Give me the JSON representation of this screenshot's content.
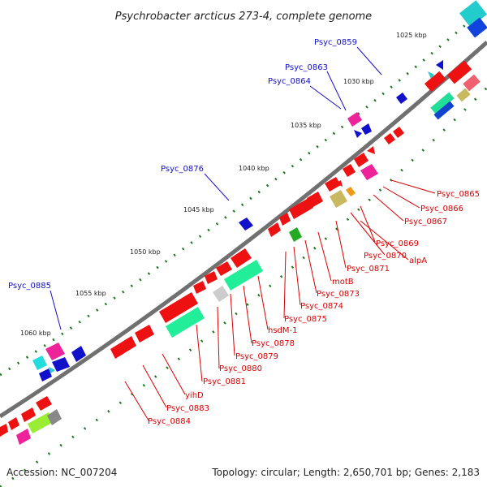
{
  "title": "Psychrobacter arcticus 273-4, complete genome",
  "footer": {
    "accession": "Accession: NC_007204",
    "summary": "Topology: circular; Length: 2,650,701 bp; Genes: 2,183"
  },
  "colors": {
    "forward_label": "#1111cc",
    "reverse_label": "#dd0000",
    "backbone": "#707070",
    "tick": "#1a7a1a"
  },
  "kbp_labels": [
    "1025 kbp",
    "1030 kbp",
    "1035 kbp",
    "1040 kbp",
    "1045 kbp",
    "1050 kbp",
    "1055 kbp",
    "1060 kbp"
  ],
  "genes_above": [
    "Psyc_0859",
    "Psyc_0863",
    "Psyc_0864",
    "Psyc_0876",
    "Psyc_0885"
  ],
  "genes_below": [
    "Psyc_0865",
    "Psyc_0866",
    "Psyc_0867",
    "Psyc_0869",
    "Psyc_0870",
    "alpA",
    "Psyc_0871",
    "motB",
    "Psyc_0873",
    "Psyc_0874",
    "Psyc_0875",
    "hsdM-1",
    "Psyc_0878",
    "Psyc_0879",
    "Psyc_0880",
    "Psyc_0881",
    "yihD",
    "Psyc_0883",
    "Psyc_0884"
  ]
}
